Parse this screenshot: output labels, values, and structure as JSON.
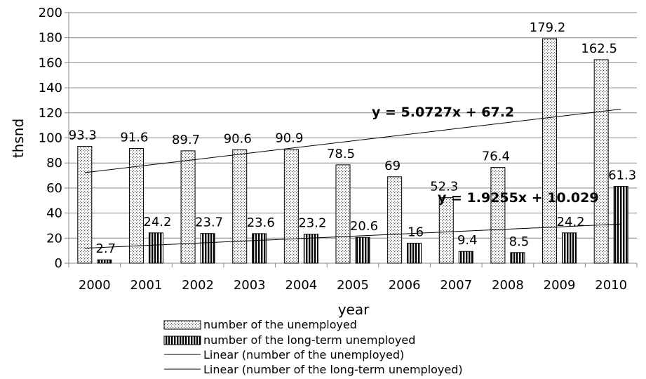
{
  "chart_data": {
    "type": "bar",
    "xlabel": "year",
    "ylabel": "thsnd",
    "ylim": [
      0,
      200
    ],
    "ytick_step": 20,
    "grid": "horizontal",
    "legend_position": "bottom",
    "categories": [
      "2000",
      "2001",
      "2002",
      "2003",
      "2004",
      "2005",
      "2006",
      "2007",
      "2008",
      "2009",
      "2010"
    ],
    "series": [
      {
        "name": "number of the unemployed",
        "values": [
          93.3,
          91.6,
          89.7,
          90.6,
          90.9,
          78.5,
          69,
          52.3,
          76.4,
          179.2,
          162.5
        ],
        "labels": [
          "93.3",
          "91.6",
          "89.7",
          "90.6",
          "90.9",
          "78.5",
          "69",
          "52.3",
          "76.4",
          "179.2",
          "162.5"
        ],
        "pattern": "dotted"
      },
      {
        "name": "number of the long-term unemployed",
        "values": [
          2.7,
          24.2,
          23.7,
          23.6,
          23.2,
          20.6,
          16,
          9.4,
          8.5,
          24.2,
          61.3
        ],
        "labels": [
          "2.7",
          "24.2",
          "23.7",
          "23.6",
          "23.2",
          "20.6",
          "16",
          "9.4",
          "8.5",
          "24.2",
          "61.3"
        ],
        "pattern": "vertical-stripes"
      }
    ],
    "trendlines": [
      {
        "name": "Linear (number of the unemployed)",
        "slope": 5.0727,
        "intercept": 67.2,
        "equation": "y = 5.0727x + 67.2"
      },
      {
        "name": "Linear (number of the long-term unemployed)",
        "slope": 1.9255,
        "intercept": 10.029,
        "equation": "y = 1.9255x + 10.029"
      }
    ]
  }
}
